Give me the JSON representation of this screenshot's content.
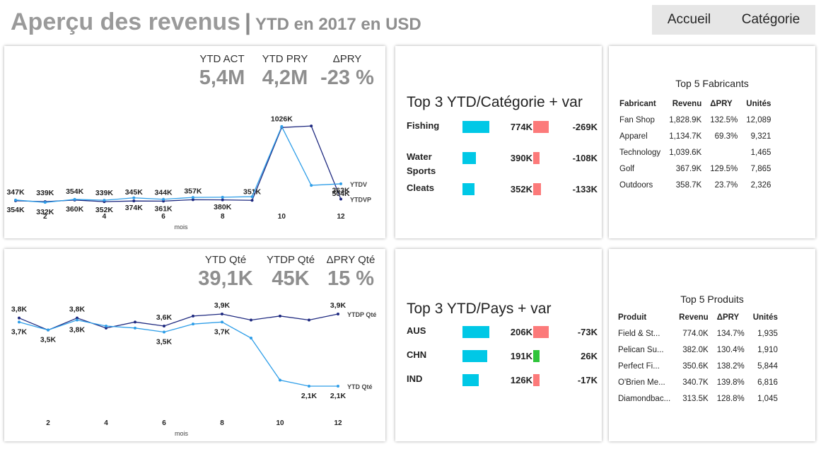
{
  "header": {
    "title": "Aperçu des revenus",
    "separator": "|",
    "subtitle": "YTD en 2017 en USD",
    "nav": [
      "Accueil",
      "Catégorie"
    ]
  },
  "revenue_kpis": [
    {
      "label": "YTD ACT",
      "value": "5,4M"
    },
    {
      "label": "YTD PRY",
      "value": "4,2M"
    },
    {
      "label": "ΔPRY",
      "value": "-23 %"
    }
  ],
  "qty_kpis": [
    {
      "label": "YTD Qté",
      "value": "39,1K"
    },
    {
      "label": "YTDP Qté",
      "value": "45K"
    },
    {
      "label": "ΔPRY Qté",
      "value": "15 %"
    }
  ],
  "chart_data": [
    {
      "type": "line",
      "title": "",
      "xlabel": "mois",
      "ylabel": "",
      "x": [
        1,
        2,
        3,
        4,
        5,
        6,
        7,
        8,
        9,
        10,
        11,
        12
      ],
      "xticks": [
        2,
        4,
        6,
        8,
        10,
        12
      ],
      "ylim": [
        320,
        1100
      ],
      "grid": false,
      "series": [
        {
          "name": "YTDVP",
          "color": "#1f2a80",
          "values": [
            347,
            339,
            354,
            339,
            345,
            344,
            357,
            355,
            351,
            1026,
            1040,
            363
          ],
          "labels": [
            "347K",
            "339K",
            "354K",
            "339K",
            "345K",
            "344K",
            "357K",
            "",
            "351K",
            "1026K",
            "",
            "363K"
          ]
        },
        {
          "name": "YTDV",
          "color": "#2f9ee8",
          "values": [
            354,
            332,
            360,
            352,
            374,
            361,
            378,
            380,
            385,
            1035,
            490,
            504
          ],
          "labels": [
            "354K",
            "332K",
            "360K",
            "352K",
            "374K",
            "361K",
            "",
            "380K",
            "",
            "",
            "",
            "504K"
          ]
        }
      ]
    },
    {
      "type": "line",
      "title": "",
      "xlabel": "mois",
      "ylabel": "",
      "x": [
        1,
        2,
        3,
        4,
        5,
        6,
        7,
        8,
        9,
        10,
        11,
        12
      ],
      "xticks": [
        2,
        4,
        6,
        8,
        10,
        12
      ],
      "ylim": [
        1.5,
        4.5
      ],
      "grid": false,
      "series": [
        {
          "name": "YTDP Qté",
          "color": "#1f2a80",
          "values": [
            3.8,
            3.5,
            3.8,
            3.55,
            3.7,
            3.6,
            3.85,
            3.9,
            3.75,
            3.85,
            3.75,
            3.9
          ],
          "labels": [
            "3,8K",
            "",
            "3,8K",
            "",
            "",
            "3,6K",
            "",
            "3,9K",
            "",
            "",
            "",
            "3,9K"
          ]
        },
        {
          "name": "YTD Qté",
          "color": "#2f9ee8",
          "values": [
            3.7,
            3.5,
            3.75,
            3.6,
            3.55,
            3.45,
            3.65,
            3.7,
            3.3,
            2.25,
            2.1,
            2.1
          ],
          "labels": [
            "3,7K",
            "3,5K",
            "3,8K",
            "",
            "",
            "3,5K",
            "",
            "3,7K",
            "",
            "",
            "2,1K",
            "2,1K"
          ]
        }
      ]
    }
  ],
  "category_card": {
    "title": "Top 3 YTD/Catégorie + var",
    "rows": [
      {
        "name": "Fishing",
        "value": "774K",
        "value_num": 774,
        "var": "-269K",
        "var_num": -269,
        "var_color": "#fc7a7a"
      },
      {
        "name": "Water Sports",
        "value": "390K",
        "value_num": 390,
        "var": "-108K",
        "var_num": -108,
        "var_color": "#fc7a7a"
      },
      {
        "name": "Cleats",
        "value": "352K",
        "value_num": 352,
        "var": "-133K",
        "var_num": -133,
        "var_color": "#fc7a7a"
      }
    ]
  },
  "country_card": {
    "title": "Top 3 YTD/Pays + var",
    "rows": [
      {
        "name": "AUS",
        "value": "206K",
        "value_num": 206,
        "var": "-73K",
        "var_num": -73,
        "var_color": "#fc7a7a"
      },
      {
        "name": "CHN",
        "value": "191K",
        "value_num": 191,
        "var": "26K",
        "var_num": 26,
        "var_color": "#2ec43a"
      },
      {
        "name": "IND",
        "value": "126K",
        "value_num": 126,
        "var": "-17K",
        "var_num": -17,
        "var_color": "#fc7a7a"
      }
    ]
  },
  "manufacturers": {
    "title": "Top 5 Fabricants",
    "headers": [
      "Fabricant",
      "Revenu",
      "ΔPRY",
      "Unités"
    ],
    "rows": [
      [
        "Fan Shop",
        "1,828.9K",
        "132.5%",
        "12,089"
      ],
      [
        "Apparel",
        "1,134.7K",
        "69.3%",
        "9,321"
      ],
      [
        "Technology",
        "1,039.6K",
        "",
        "1,465"
      ],
      [
        "Golf",
        "367.9K",
        "129.5%",
        "7,865"
      ],
      [
        "Outdoors",
        "358.7K",
        "23.7%",
        "2,326"
      ]
    ]
  },
  "products": {
    "title": "Top 5 Produits",
    "headers": [
      "Produit",
      "Revenu",
      "ΔPRY",
      "Unités"
    ],
    "rows": [
      [
        "Field & St...",
        "774.0K",
        "134.7%",
        "1,935"
      ],
      [
        "Pelican Su...",
        "382.0K",
        "130.4%",
        "1,910"
      ],
      [
        "Perfect Fi...",
        "350.6K",
        "138.2%",
        "5,844"
      ],
      [
        "O'Brien Me...",
        "340.7K",
        "139.8%",
        "6,816"
      ],
      [
        "Diamondbac...",
        "313.5K",
        "128.8%",
        "1,045"
      ]
    ]
  }
}
